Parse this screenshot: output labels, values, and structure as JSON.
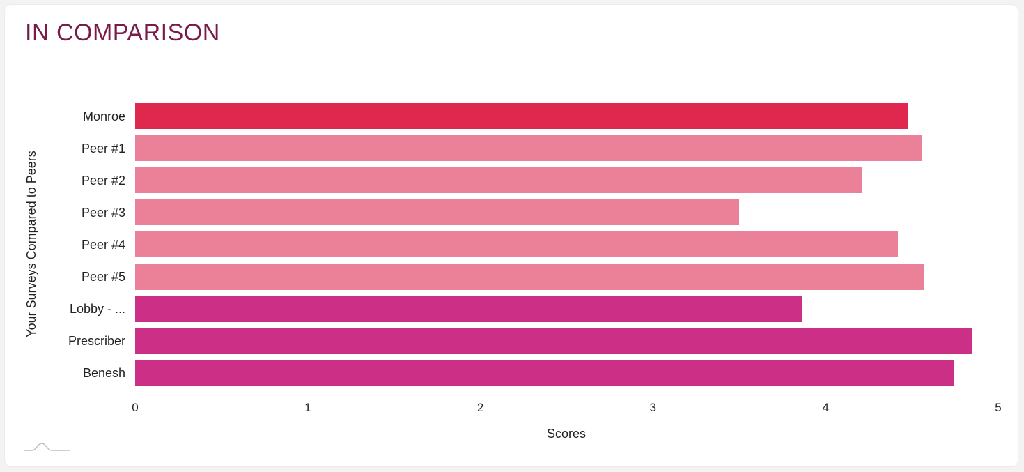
{
  "page": {
    "title": "IN COMPARISON"
  },
  "colors": {
    "title": "#7a1a4a",
    "you": "#e0284f",
    "peer": "#ea8199",
    "survey": "#cc2f86"
  },
  "chart_data": {
    "type": "bar",
    "orientation": "horizontal",
    "xlabel": "Scores",
    "ylabel": "Your Surveys Compared to Peers",
    "xlim": [
      0,
      5
    ],
    "xticks": [
      "0",
      "1",
      "2",
      "3",
      "4",
      "5"
    ],
    "grid": false,
    "categories": [
      "Monroe",
      "Peer #1",
      "Peer #2",
      "Peer #3",
      "Peer #4",
      "Peer #5",
      "Lobby - ...",
      "Prescriber",
      "Benesh"
    ],
    "values": [
      4.48,
      4.56,
      4.21,
      3.5,
      4.42,
      4.57,
      3.86,
      4.85,
      4.74
    ],
    "bar_groups": [
      "you",
      "peer",
      "peer",
      "peer",
      "peer",
      "peer",
      "survey",
      "survey",
      "survey"
    ]
  }
}
